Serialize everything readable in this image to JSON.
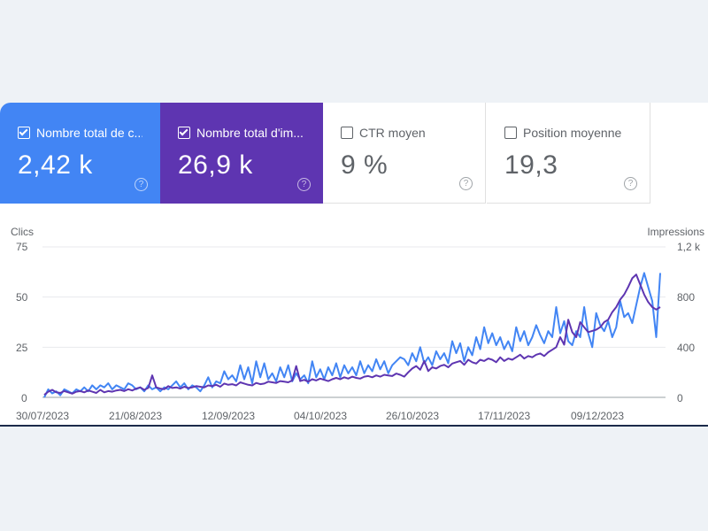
{
  "cards": [
    {
      "label": "Nombre total de c...",
      "value": "2,42 k",
      "checked": true,
      "color": "#4285f4"
    },
    {
      "label": "Nombre total d'im...",
      "value": "26,9 k",
      "checked": true,
      "color": "#5e35b1"
    },
    {
      "label": "CTR moyen",
      "value": "9 %",
      "checked": false,
      "color": "#ffffff"
    },
    {
      "label": "Position moyenne",
      "value": "19,3",
      "checked": false,
      "color": "#ffffff"
    }
  ],
  "help_glyph": "?",
  "chart_data": {
    "type": "line",
    "left_axis_title": "Clics",
    "right_axis_title": "Impressions",
    "left_ticks": [
      "75",
      "50",
      "25",
      "0"
    ],
    "right_ticks": [
      "1,2 k",
      "800",
      "400",
      "0"
    ],
    "y_left_lim": [
      0,
      75
    ],
    "y_right_lim": [
      0,
      1200
    ],
    "x_tick_labels": [
      "30/07/2023",
      "21/08/2023",
      "12/09/2023",
      "04/10/2023",
      "26/10/2023",
      "17/11/2023",
      "09/12/2023"
    ],
    "x_range": [
      "2023-07-30",
      "2023-12-30"
    ],
    "grid": true,
    "series": [
      {
        "axis": "left",
        "color": "#4285f4",
        "values": [
          0,
          4,
          2,
          3,
          1,
          4,
          3,
          2,
          4,
          3,
          5,
          3,
          6,
          4,
          6,
          5,
          7,
          4,
          6,
          5,
          4,
          7,
          6,
          4,
          5,
          3,
          6,
          4,
          5,
          3,
          5,
          4,
          6,
          8,
          5,
          7,
          4,
          6,
          5,
          3,
          6,
          10,
          5,
          8,
          7,
          13,
          9,
          11,
          8,
          16,
          9,
          15,
          7,
          18,
          10,
          17,
          9,
          12,
          8,
          15,
          10,
          16,
          8,
          12,
          9,
          11,
          7,
          18,
          10,
          14,
          9,
          15,
          11,
          17,
          10,
          16,
          12,
          15,
          11,
          18,
          12,
          16,
          13,
          19,
          14,
          18,
          12,
          16,
          18,
          20,
          19,
          16,
          22,
          18,
          25,
          17,
          20,
          16,
          23,
          19,
          22,
          17,
          28,
          22,
          27,
          18,
          25,
          21,
          30,
          24,
          35,
          27,
          32,
          26,
          30,
          24,
          28,
          23,
          35,
          28,
          33,
          26,
          30,
          36,
          31,
          27,
          33,
          30,
          45,
          32,
          38,
          28,
          26,
          33,
          30,
          45,
          32,
          25,
          42,
          36,
          33,
          38,
          30,
          35,
          48,
          40,
          42,
          37,
          46,
          55,
          62,
          55,
          48,
          30,
          62
        ]
      },
      {
        "axis": "right",
        "color": "#5e35b1",
        "values": [
          20,
          45,
          60,
          40,
          35,
          50,
          40,
          30,
          45,
          50,
          40,
          55,
          45,
          35,
          60,
          40,
          50,
          45,
          55,
          60,
          50,
          65,
          55,
          70,
          80,
          60,
          75,
          175,
          80,
          70,
          65,
          90,
          75,
          80,
          70,
          85,
          75,
          80,
          90,
          85,
          80,
          95,
          90,
          100,
          85,
          110,
          100,
          105,
          95,
          120,
          110,
          100,
          95,
          115,
          105,
          110,
          125,
          120,
          115,
          130,
          125,
          120,
          135,
          250,
          130,
          140,
          125,
          145,
          135,
          150,
          140,
          130,
          145,
          155,
          145,
          160,
          150,
          165,
          155,
          150,
          165,
          170,
          160,
          175,
          165,
          180,
          175,
          170,
          190,
          180,
          165,
          200,
          230,
          250,
          220,
          290,
          210,
          240,
          230,
          250,
          260,
          240,
          270,
          280,
          290,
          260,
          300,
          280,
          270,
          300,
          290,
          310,
          300,
          280,
          320,
          290,
          310,
          300,
          320,
          340,
          310,
          330,
          320,
          340,
          350,
          330,
          360,
          380,
          400,
          480,
          420,
          620,
          520,
          480,
          600,
          560,
          520,
          530,
          540,
          560,
          600,
          620,
          680,
          720,
          780,
          820,
          880,
          950,
          980,
          900,
          820,
          760,
          720,
          700,
          720
        ]
      }
    ]
  }
}
